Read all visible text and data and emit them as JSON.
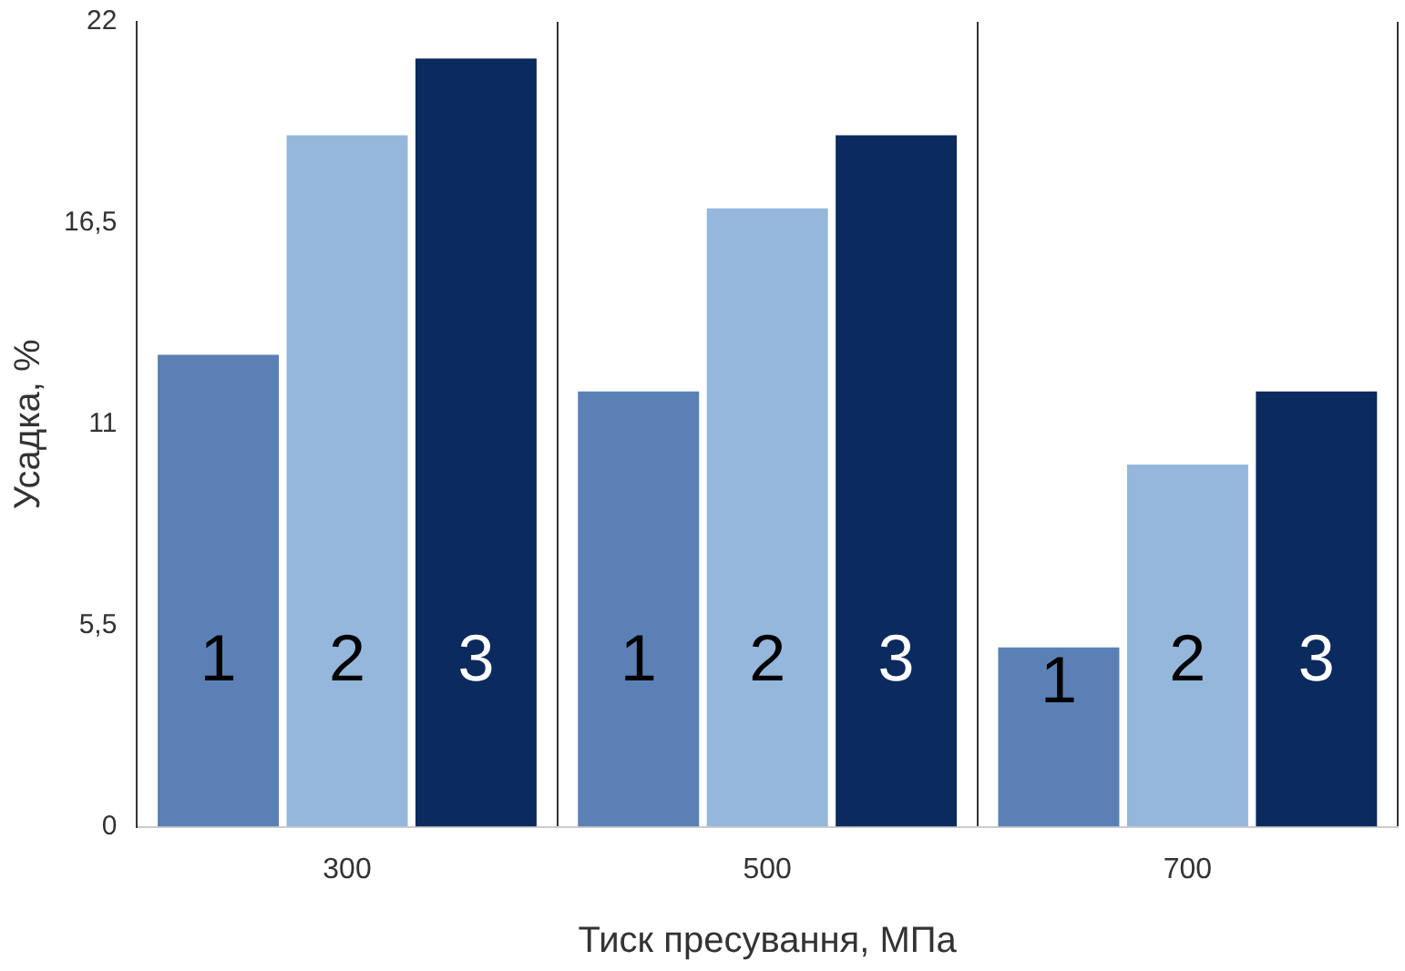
{
  "chart_data": {
    "type": "bar",
    "xlabel": "Тиск пресування, МПа",
    "ylabel": "Усадка, %",
    "categories": [
      "300",
      "500",
      "700"
    ],
    "series": [
      {
        "name": "1",
        "color": "#5b80b5",
        "values": [
          12.9,
          11.9,
          4.9
        ]
      },
      {
        "name": "2",
        "color": "#94b7db",
        "values": [
          18.9,
          16.9,
          9.9
        ]
      },
      {
        "name": "3",
        "color": "#0b2a5e",
        "values": [
          21,
          18.9,
          11.9
        ]
      }
    ],
    "ylim": [
      0,
      22
    ],
    "yticks": [
      0,
      {
        "value": 5.5,
        "label": "5,5"
      },
      11,
      {
        "value": 16.5,
        "label": "16,5"
      },
      22
    ],
    "grid": "x",
    "legend": false
  }
}
